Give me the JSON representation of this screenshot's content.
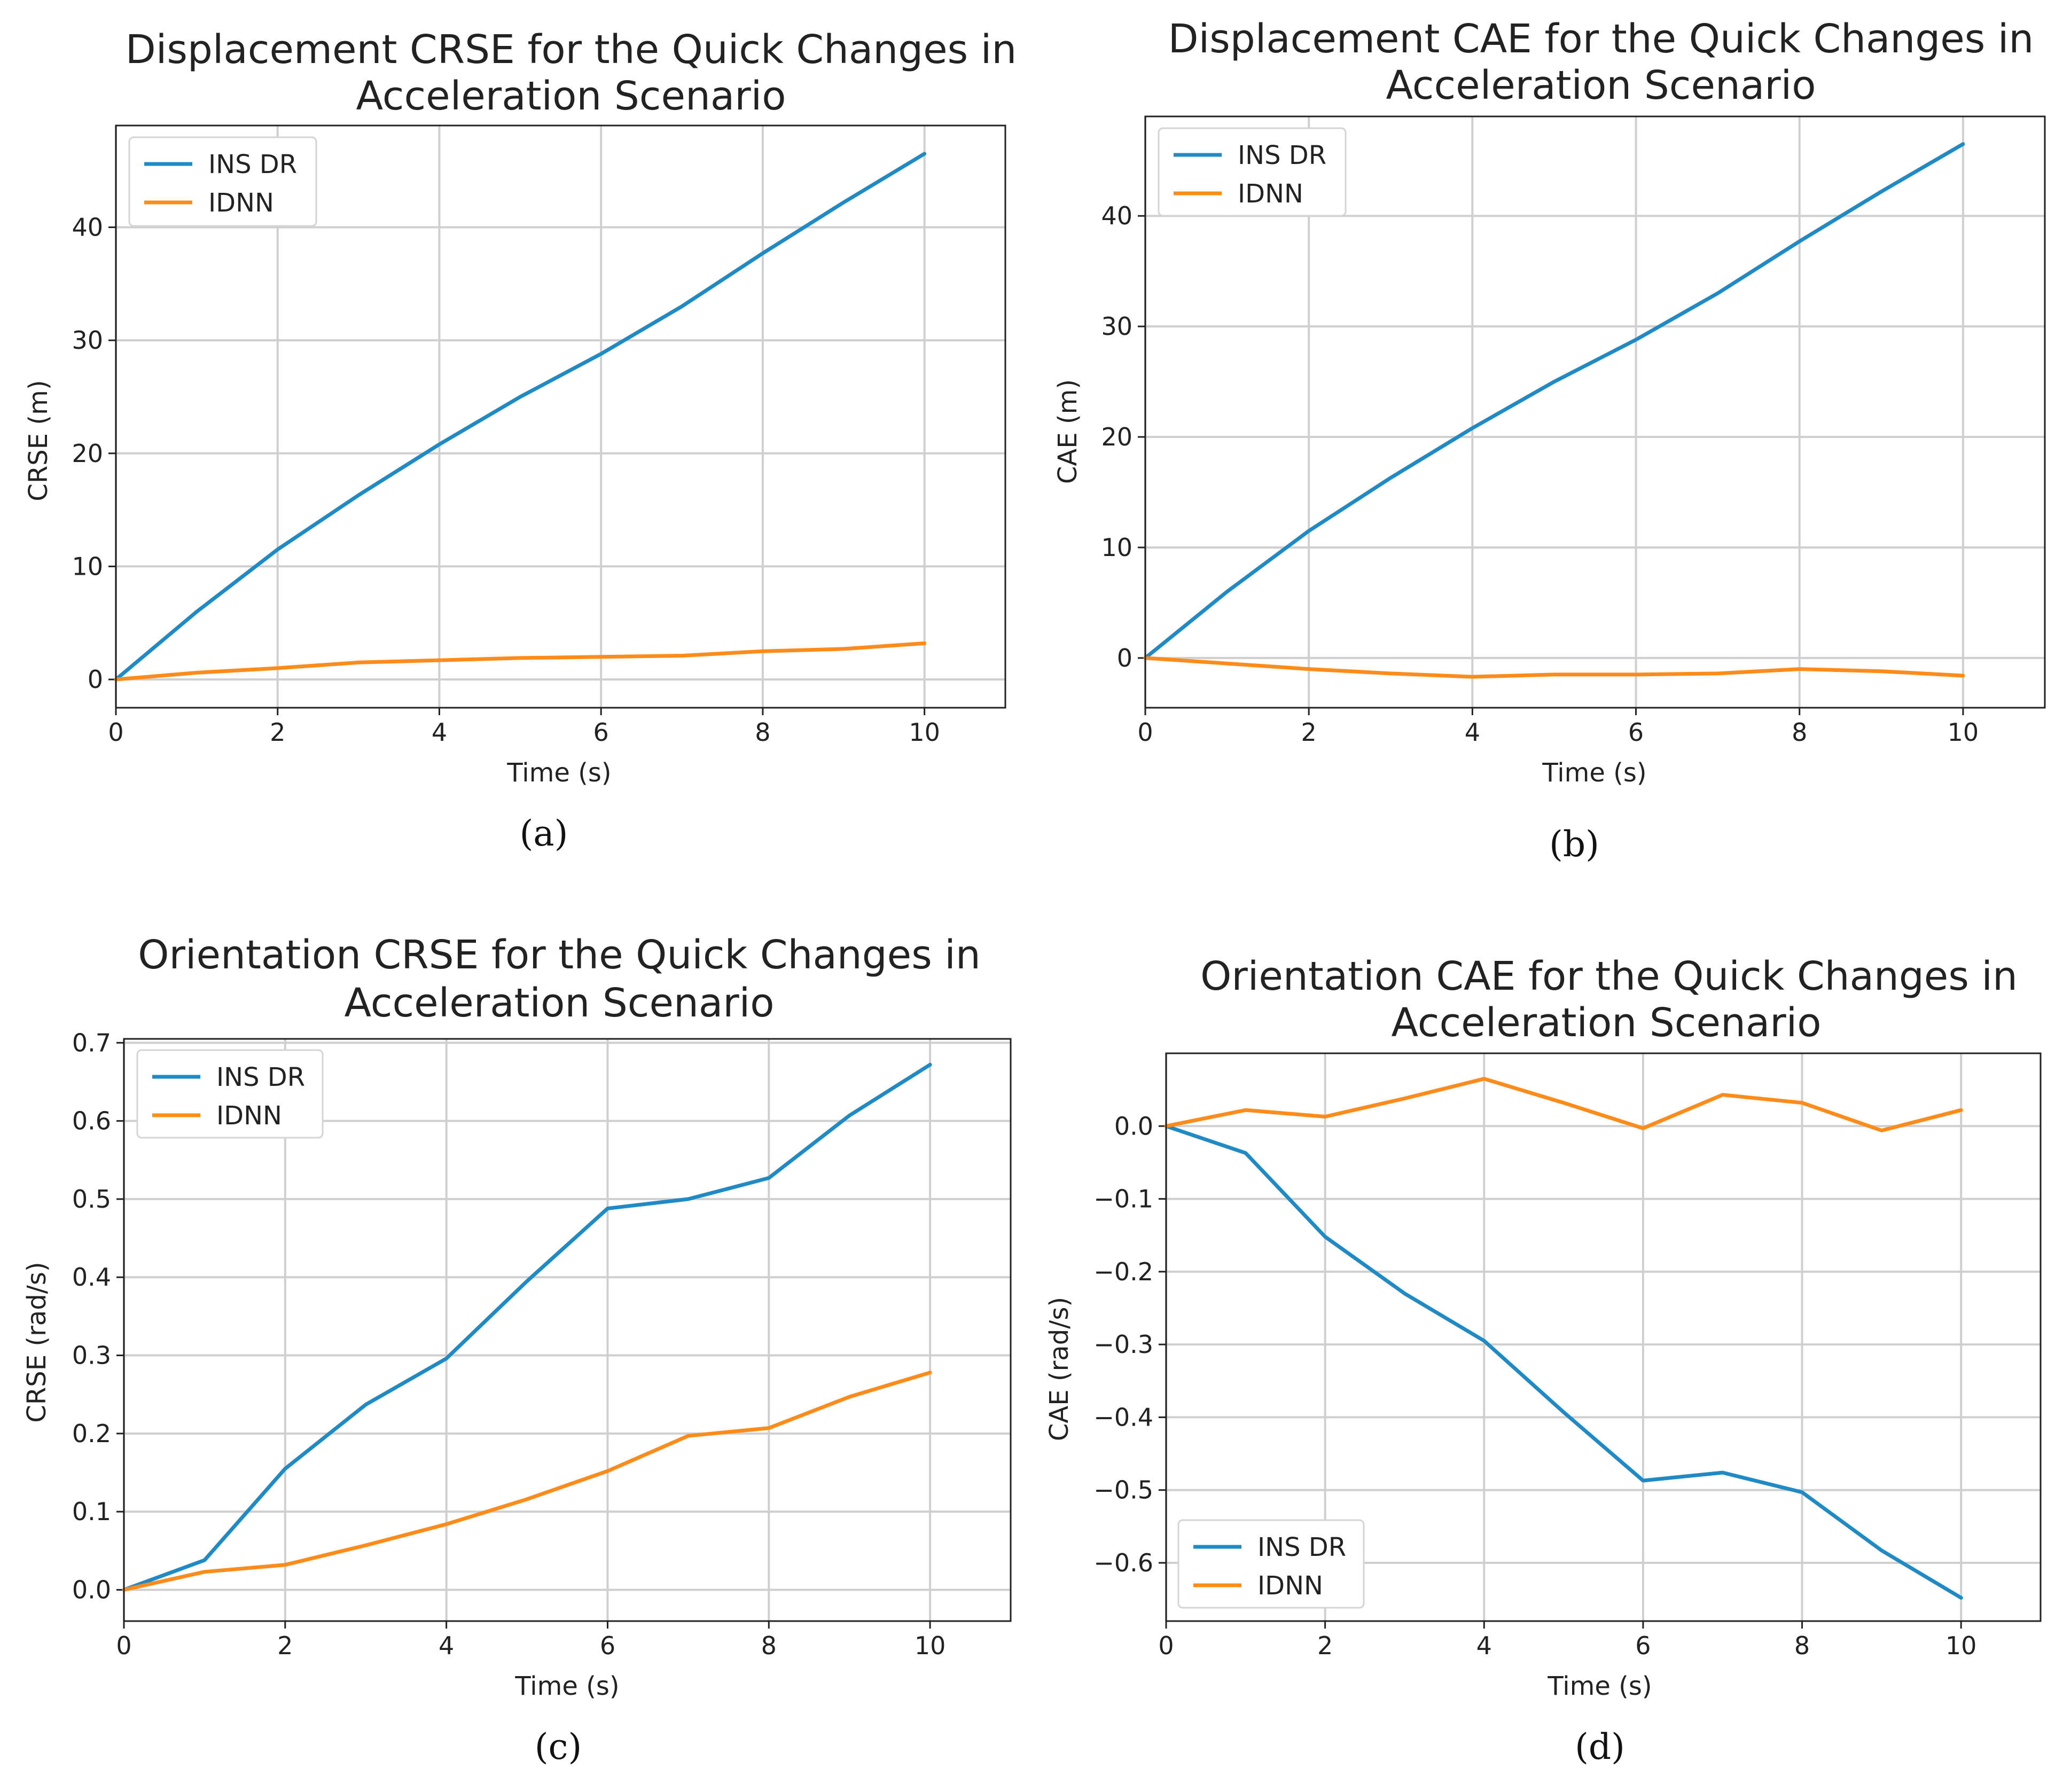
{
  "colors": {
    "ins_dr": "#1f8ac4",
    "idnn": "#ff8c1a"
  },
  "chart_data": [
    {
      "type": "line",
      "title": [
        "Displacement CRSE for the Quick Changes in",
        "Acceleration Scenario"
      ],
      "xlabel": "Time (s)",
      "ylabel": "CRSE (m)",
      "caption": "(a)",
      "xlim": [
        0,
        11
      ],
      "ylim": [
        -2.5,
        49
      ],
      "xticks": [
        0,
        2,
        4,
        6,
        8,
        10
      ],
      "yticks": [
        0,
        10,
        20,
        30,
        40
      ],
      "ytick_labels": [
        "0",
        "10",
        "20",
        "30",
        "40"
      ],
      "legend": "top-left",
      "x": [
        0,
        1,
        2,
        3,
        4,
        5,
        6,
        7,
        8,
        9,
        10
      ],
      "series": [
        {
          "name": "INS DR",
          "values": [
            0,
            6,
            11.5,
            16.3,
            20.8,
            25,
            28.8,
            33,
            37.7,
            42.2,
            46.5
          ]
        },
        {
          "name": "IDNN",
          "values": [
            0,
            0.6,
            1.0,
            1.5,
            1.7,
            1.9,
            2.0,
            2.1,
            2.5,
            2.7,
            3.2
          ]
        }
      ]
    },
    {
      "type": "line",
      "title": [
        "Displacement CAE for the Quick Changes in",
        "Acceleration Scenario"
      ],
      "xlabel": "Time (s)",
      "ylabel": "CAE (m)",
      "caption": "(b)",
      "xlim": [
        0,
        11
      ],
      "ylim": [
        -4.5,
        49
      ],
      "xticks": [
        0,
        2,
        4,
        6,
        8,
        10
      ],
      "yticks": [
        0,
        10,
        20,
        30,
        40
      ],
      "ytick_labels": [
        "0",
        "10",
        "20",
        "30",
        "40"
      ],
      "legend": "top-left",
      "x": [
        0,
        1,
        2,
        3,
        4,
        5,
        6,
        7,
        8,
        9,
        10
      ],
      "series": [
        {
          "name": "INS DR",
          "values": [
            0,
            6,
            11.5,
            16.3,
            20.8,
            25,
            28.8,
            33,
            37.7,
            42.2,
            46.5
          ]
        },
        {
          "name": "IDNN",
          "values": [
            0,
            -0.5,
            -1.0,
            -1.4,
            -1.7,
            -1.5,
            -1.5,
            -1.4,
            -1.0,
            -1.2,
            -1.6
          ]
        }
      ]
    },
    {
      "type": "line",
      "title": [
        "Orientation CRSE for the Quick Changes in",
        "Acceleration Scenario"
      ],
      "xlabel": "Time (s)",
      "ylabel": "CRSE (rad/s)",
      "caption": "(c)",
      "xlim": [
        0,
        11
      ],
      "ylim": [
        -0.04,
        0.705
      ],
      "xticks": [
        0,
        2,
        4,
        6,
        8,
        10
      ],
      "yticks": [
        0,
        0.1,
        0.2,
        0.3,
        0.4,
        0.5,
        0.6,
        0.7
      ],
      "ytick_labels": [
        "0.0",
        "0.1",
        "0.2",
        "0.3",
        "0.4",
        "0.5",
        "0.6",
        "0.7"
      ],
      "legend": "top-left",
      "x": [
        0,
        1,
        2,
        3,
        4,
        5,
        6,
        7,
        8,
        9,
        10
      ],
      "series": [
        {
          "name": "INS DR",
          "values": [
            0,
            0.038,
            0.155,
            0.237,
            0.296,
            0.395,
            0.488,
            0.5,
            0.527,
            0.607,
            0.672
          ]
        },
        {
          "name": "IDNN",
          "values": [
            0,
            0.023,
            0.032,
            0.057,
            0.084,
            0.116,
            0.152,
            0.197,
            0.207,
            0.247,
            0.278
          ]
        }
      ]
    },
    {
      "type": "line",
      "title": [
        "Orientation CAE for the Quick Changes in",
        "Acceleration Scenario"
      ],
      "xlabel": "Time (s)",
      "ylabel": "CAE (rad/s)",
      "caption": "(d)",
      "xlim": [
        0,
        11
      ],
      "ylim": [
        -0.68,
        0.1
      ],
      "xticks": [
        0,
        2,
        4,
        6,
        8,
        10
      ],
      "yticks": [
        0,
        -0.1,
        -0.2,
        -0.3,
        -0.4,
        -0.5,
        -0.6
      ],
      "ytick_labels": [
        "0.0",
        "−0.1",
        "−0.2",
        "−0.3",
        "−0.4",
        "−0.5",
        "−0.6"
      ],
      "legend": "bottom-left",
      "x": [
        0,
        1,
        2,
        3,
        4,
        5,
        6,
        7,
        8,
        9,
        10
      ],
      "series": [
        {
          "name": "INS DR",
          "values": [
            0,
            -0.037,
            -0.152,
            -0.23,
            -0.295,
            -0.393,
            -0.487,
            -0.476,
            -0.503,
            -0.583,
            -0.648
          ]
        },
        {
          "name": "IDNN",
          "values": [
            0,
            0.022,
            0.013,
            0.038,
            0.065,
            0.032,
            -0.003,
            0.043,
            0.032,
            -0.006,
            0.022
          ]
        }
      ]
    }
  ]
}
